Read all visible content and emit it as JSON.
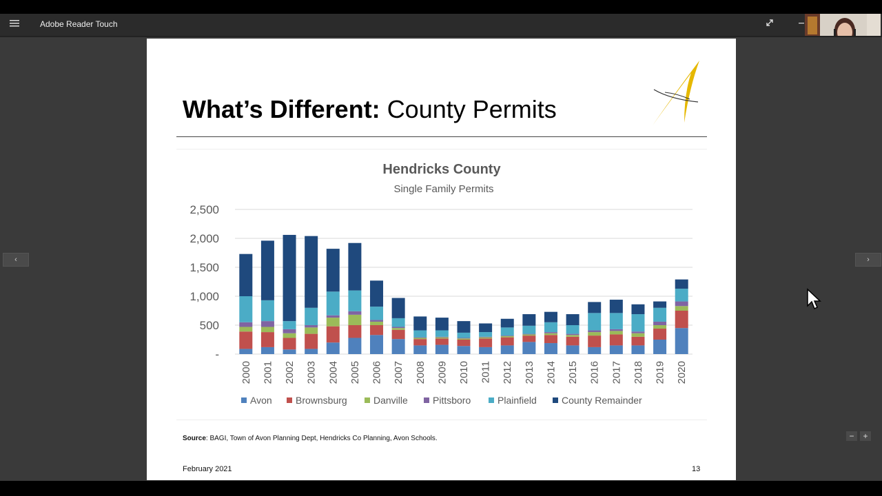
{
  "app": {
    "title": "Adobe Reader Touch"
  },
  "slide": {
    "title_bold": "What’s Different:",
    "title_rest": "County Permits",
    "source_label": "Source",
    "source_text": ": BAGI, Town of Avon Planning Dept, Hendricks Co Planning, Avon Schools.",
    "date": "February 2021",
    "page_number": "13"
  },
  "nav": {
    "prev": "‹",
    "next": "›",
    "zoom_out": "−",
    "zoom_in": "+"
  },
  "icons": {
    "menu": "hamburger-icon",
    "expand": "expand-icon",
    "minimize": "minimize-icon",
    "logo": "swoosh-logo"
  },
  "colors": {
    "Avon": "#4f81bd",
    "Brownsburg": "#c0504d",
    "Danville": "#9bbb59",
    "Pittsboro": "#8064a2",
    "Plainfield": "#4bacc6",
    "County Remainder": "#1f497d"
  },
  "chart_data": {
    "type": "bar",
    "stacked": true,
    "title": "Hendricks County",
    "subtitle": "Single Family Permits",
    "xlabel": "",
    "ylabel": "",
    "ylim": [
      0,
      2500
    ],
    "yticks": [
      0,
      500,
      1000,
      1500,
      2000,
      2500
    ],
    "ytick_labels": [
      "-",
      "500",
      "1,000",
      "1,500",
      "2,000",
      "2,500"
    ],
    "grid": true,
    "legend": "bottom",
    "categories": [
      "2000",
      "2001",
      "2002",
      "2003",
      "2004",
      "2005",
      "2006",
      "2007",
      "2008",
      "2009",
      "2010",
      "2011",
      "2012",
      "2013",
      "2014",
      "2015",
      "2016",
      "2017",
      "2018",
      "2019",
      "2020"
    ],
    "series": [
      {
        "name": "Avon",
        "values": [
          90,
          120,
          80,
          90,
          200,
          280,
          330,
          260,
          150,
          160,
          140,
          120,
          150,
          210,
          190,
          150,
          120,
          150,
          150,
          250,
          450
        ]
      },
      {
        "name": "Brownsburg",
        "values": [
          300,
          260,
          200,
          260,
          280,
          220,
          170,
          160,
          110,
          110,
          110,
          150,
          140,
          110,
          140,
          150,
          200,
          190,
          150,
          190,
          300
        ]
      },
      {
        "name": "Danville",
        "values": [
          80,
          90,
          80,
          110,
          150,
          180,
          60,
          30,
          20,
          20,
          20,
          20,
          20,
          20,
          30,
          30,
          60,
          60,
          60,
          60,
          80
        ]
      },
      {
        "name": "Pittsboro",
        "values": [
          80,
          100,
          70,
          40,
          40,
          60,
          30,
          20,
          10,
          10,
          10,
          10,
          10,
          10,
          20,
          20,
          30,
          30,
          30,
          60,
          80
        ]
      },
      {
        "name": "Plainfield",
        "values": [
          450,
          360,
          140,
          300,
          410,
          360,
          230,
          150,
          120,
          110,
          90,
          80,
          140,
          140,
          170,
          150,
          300,
          280,
          300,
          240,
          220
        ]
      },
      {
        "name": "County Remainder",
        "values": [
          730,
          1030,
          1490,
          1240,
          740,
          820,
          450,
          350,
          240,
          220,
          200,
          150,
          150,
          200,
          180,
          190,
          190,
          230,
          170,
          110,
          160
        ]
      }
    ]
  }
}
